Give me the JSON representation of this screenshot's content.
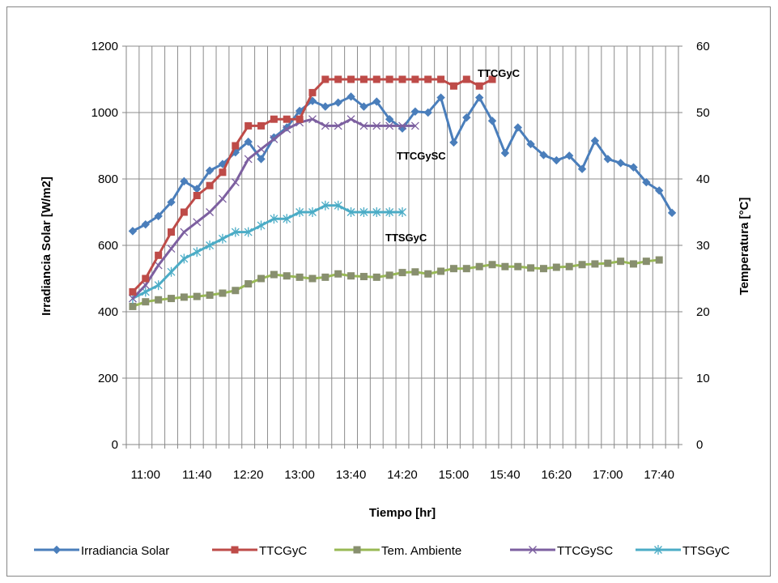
{
  "chart_data": {
    "type": "line",
    "xlabel": "Tiempo [hr]",
    "ylabel_left": "Irradiancia Solar [W/m2]",
    "ylabel_right": "Temperatura [°C]",
    "ylim_left": [
      0,
      1200
    ],
    "ylim_right": [
      0,
      60
    ],
    "yticks_left": [
      "0",
      "200",
      "400",
      "600",
      "800",
      "1000",
      "1200"
    ],
    "yticks_right": [
      "0",
      "10",
      "20",
      "30",
      "40",
      "50",
      "60"
    ],
    "x_tick_labels": [
      "11:00",
      "11:40",
      "12:20",
      "13:00",
      "13:40",
      "14:20",
      "15:00",
      "15:40",
      "16:20",
      "17:00",
      "17:40"
    ],
    "grid": true,
    "legend_position": "bottom",
    "series": [
      {
        "name": "Irradiancia Solar",
        "axis": "left",
        "color": "#4a7ebb",
        "marker": "diamond",
        "values": [
          643,
          663,
          688,
          730,
          793,
          770,
          825,
          845,
          880,
          912,
          860,
          925,
          955,
          1005,
          1035,
          1018,
          1030,
          1048,
          1018,
          1033,
          980,
          952,
          1003,
          1000,
          1045,
          910,
          985,
          1045,
          975,
          878,
          955,
          905,
          872,
          856,
          870,
          830,
          915,
          860,
          848,
          835,
          790,
          765,
          698
        ]
      },
      {
        "name": "TTCGyC",
        "axis": "right",
        "color": "#be4b48",
        "marker": "square",
        "values": [
          23,
          25,
          28.5,
          32,
          35,
          37.5,
          39,
          41,
          45,
          48,
          48,
          49,
          49,
          49,
          53,
          55,
          55,
          55,
          55,
          55,
          55,
          55,
          55,
          55,
          55,
          54,
          55,
          54,
          55
        ]
      },
      {
        "name": "Tem. Ambiente",
        "axis": "right",
        "color": "#98b954",
        "marker_color": "#888f6f",
        "marker": "square",
        "values": [
          20.8,
          21.5,
          21.8,
          22,
          22.2,
          22.3,
          22.5,
          22.8,
          23.2,
          24.2,
          25,
          25.6,
          25.4,
          25.2,
          25,
          25.2,
          25.7,
          25.4,
          25.3,
          25.2,
          25.5,
          25.9,
          26,
          25.7,
          26.1,
          26.5,
          26.5,
          26.8,
          27.1,
          26.8,
          26.8,
          26.6,
          26.5,
          26.7,
          26.8,
          27.1,
          27.2,
          27.3,
          27.6,
          27.2,
          27.6,
          27.8
        ]
      },
      {
        "name": "TTCGySC",
        "axis": "right",
        "color": "#7d60a0",
        "marker": "x",
        "values": [
          22,
          24,
          27,
          29.5,
          32,
          33.5,
          35,
          37,
          39.5,
          43,
          44.5,
          46,
          47.5,
          48.5,
          49,
          48,
          48,
          49,
          48,
          48,
          48,
          48,
          48
        ]
      },
      {
        "name": "TTSGyC",
        "axis": "right",
        "color": "#4bacc6",
        "marker": "star",
        "values": [
          22,
          23,
          24,
          26,
          28,
          29,
          30,
          31,
          32,
          32,
          33,
          34,
          34,
          35,
          35,
          36,
          36,
          35,
          35,
          35,
          35,
          35
        ]
      }
    ],
    "annotations": [
      {
        "text": "TTCGyC",
        "series": "TTCGyC"
      },
      {
        "text": "TTCGySC",
        "series": "TTCGySC"
      },
      {
        "text": "TTSGyC",
        "series": "TTSGyC"
      }
    ]
  }
}
